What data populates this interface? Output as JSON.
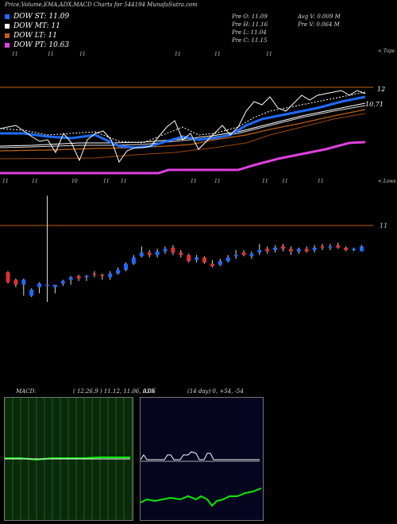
{
  "header": {
    "title": "Price,Volume,EMA,ADX,MACD Charts for 544194  MunafaSutra.com"
  },
  "legend": [
    {
      "label": "DOW ST: 11.09",
      "color": "#1e6bff"
    },
    {
      "label": "DOW MT: 11",
      "color": "#ffffff"
    },
    {
      "label": "DOW LT: 11",
      "color": "#c06010"
    },
    {
      "label": "DOW PT: 10.63",
      "color": "#e040e0"
    }
  ],
  "ohlc": {
    "open": "Pre   O: 11.09",
    "high": "Pre   H: 11.16",
    "low": "Pre   L: 11.04",
    "close": "Pre   C: 11.15",
    "avg_volume": "Avg V: 0.009  M",
    "prev_volume": "Pre   V: 0.064  M"
  },
  "labels": {
    "top": "< Tops",
    "lows": "< Lows",
    "price_12": "12",
    "price_1071": "10.71",
    "price_11": "11",
    "macd": "MACD:",
    "macd_params": "( 12,26,9 ) 11.12, 11.06, 0.06",
    "adx": "ADX",
    "adx_params": "(14  day) 0,  +54,  -54"
  },
  "top_ticks": [
    "11",
    "11",
    "11",
    "11",
    "11",
    "11"
  ],
  "low_ticks": [
    "11",
    "11",
    "10",
    "11",
    "11",
    "11",
    "11",
    "11",
    "11",
    "11"
  ],
  "chart_data": {
    "type": "candlestick",
    "title": "Price,Volume,EMA,ADX,MACD Charts for 544194  MunafaSutra.com",
    "y_ticks": [
      "12",
      "10.71",
      "11"
    ],
    "candles_note": "approximate, read from pixel positions",
    "candles": [
      {
        "o": 10.72,
        "c": 10.64,
        "h": 10.73,
        "l": 10.63,
        "up": false
      },
      {
        "o": 10.66,
        "c": 10.62,
        "h": 10.67,
        "l": 10.6,
        "up": false
      },
      {
        "o": 10.62,
        "c": 10.66,
        "h": 10.67,
        "l": 10.53,
        "up": true
      },
      {
        "o": 10.53,
        "c": 10.58,
        "h": 10.59,
        "l": 10.52,
        "up": true
      },
      {
        "o": 10.6,
        "c": 10.63,
        "h": 10.64,
        "l": 10.55,
        "up": true
      },
      {
        "o": 10.62,
        "c": 10.62,
        "h": 11.34,
        "l": 10.48,
        "up": true
      },
      {
        "o": 10.6,
        "c": 10.62,
        "h": 10.62,
        "l": 10.55,
        "up": true
      },
      {
        "o": 10.63,
        "c": 10.65,
        "h": 10.66,
        "l": 10.61,
        "up": true
      },
      {
        "o": 10.66,
        "c": 10.68,
        "h": 10.69,
        "l": 10.62,
        "up": true
      },
      {
        "o": 10.69,
        "c": 10.67,
        "h": 10.7,
        "l": 10.65,
        "up": false
      },
      {
        "o": 10.68,
        "c": 10.69,
        "h": 10.7,
        "l": 10.65,
        "up": true
      },
      {
        "o": 10.71,
        "c": 10.7,
        "h": 10.73,
        "l": 10.68,
        "up": false
      },
      {
        "o": 10.7,
        "c": 10.69,
        "h": 10.71,
        "l": 10.66,
        "up": false
      },
      {
        "o": 10.68,
        "c": 10.71,
        "h": 10.73,
        "l": 10.66,
        "up": true
      },
      {
        "o": 10.71,
        "c": 10.74,
        "h": 10.76,
        "l": 10.7,
        "up": true
      },
      {
        "o": 10.74,
        "c": 10.79,
        "h": 10.8,
        "l": 10.73,
        "up": true
      },
      {
        "o": 10.79,
        "c": 10.84,
        "h": 10.86,
        "l": 10.78,
        "up": true
      },
      {
        "o": 10.85,
        "c": 10.88,
        "h": 10.93,
        "l": 10.84,
        "up": true
      },
      {
        "o": 10.88,
        "c": 10.86,
        "h": 10.9,
        "l": 10.84,
        "up": false
      },
      {
        "o": 10.86,
        "c": 10.89,
        "h": 10.91,
        "l": 10.84,
        "up": true
      },
      {
        "o": 10.89,
        "c": 10.91,
        "h": 10.93,
        "l": 10.87,
        "up": true
      },
      {
        "o": 10.92,
        "c": 10.88,
        "h": 10.94,
        "l": 10.86,
        "up": false
      },
      {
        "o": 10.88,
        "c": 10.86,
        "h": 10.9,
        "l": 10.84,
        "up": false
      },
      {
        "o": 10.86,
        "c": 10.81,
        "h": 10.87,
        "l": 10.8,
        "up": false
      },
      {
        "o": 10.82,
        "c": 10.84,
        "h": 10.86,
        "l": 10.8,
        "up": true
      },
      {
        "o": 10.84,
        "c": 10.8,
        "h": 10.85,
        "l": 10.79,
        "up": false
      },
      {
        "o": 10.79,
        "c": 10.77,
        "h": 10.82,
        "l": 10.76,
        "up": false
      },
      {
        "o": 10.78,
        "c": 10.81,
        "h": 10.83,
        "l": 10.77,
        "up": true
      },
      {
        "o": 10.81,
        "c": 10.84,
        "h": 10.86,
        "l": 10.8,
        "up": true
      },
      {
        "o": 10.85,
        "c": 10.86,
        "h": 10.9,
        "l": 10.83,
        "up": true
      },
      {
        "o": 10.88,
        "c": 10.86,
        "h": 10.9,
        "l": 10.85,
        "up": false
      },
      {
        "o": 10.85,
        "c": 10.87,
        "h": 10.89,
        "l": 10.83,
        "up": true
      },
      {
        "o": 10.88,
        "c": 10.9,
        "h": 10.95,
        "l": 10.86,
        "up": true
      },
      {
        "o": 10.91,
        "c": 10.89,
        "h": 10.93,
        "l": 10.87,
        "up": false
      },
      {
        "o": 10.9,
        "c": 10.92,
        "h": 10.94,
        "l": 10.88,
        "up": true
      },
      {
        "o": 10.93,
        "c": 10.91,
        "h": 10.95,
        "l": 10.89,
        "up": false
      },
      {
        "o": 10.91,
        "c": 10.89,
        "h": 10.93,
        "l": 10.86,
        "up": false
      },
      {
        "o": 10.89,
        "c": 10.91,
        "h": 10.92,
        "l": 10.87,
        "up": true
      },
      {
        "o": 10.91,
        "c": 10.89,
        "h": 10.93,
        "l": 10.88,
        "up": false
      },
      {
        "o": 10.9,
        "c": 10.92,
        "h": 10.94,
        "l": 10.88,
        "up": true
      },
      {
        "o": 10.93,
        "c": 10.92,
        "h": 10.95,
        "l": 10.9,
        "up": false
      },
      {
        "o": 10.92,
        "c": 10.93,
        "h": 10.95,
        "l": 10.9,
        "up": true
      },
      {
        "o": 10.94,
        "c": 10.92,
        "h": 10.96,
        "l": 10.91,
        "up": false
      },
      {
        "o": 10.92,
        "c": 10.9,
        "h": 10.93,
        "l": 10.89,
        "up": false
      },
      {
        "o": 10.9,
        "c": 10.91,
        "h": 10.92,
        "l": 10.89,
        "up": true
      },
      {
        "o": 10.89,
        "c": 10.93,
        "h": 10.94,
        "l": 10.89,
        "up": true
      }
    ],
    "series": [
      {
        "name": "DOW ST",
        "color": "#1e6bff"
      },
      {
        "name": "DOW MT",
        "color": "#ffffff"
      },
      {
        "name": "DOW LT",
        "color": "#c06010"
      },
      {
        "name": "DOW PT",
        "color": "#e040e0"
      }
    ],
    "macd": {
      "macd": 11.12,
      "signal": 11.06,
      "histogram": 0.06
    },
    "adx": {
      "adx": 0,
      "plus_di": 54,
      "minus_di": 54
    }
  },
  "colors": {
    "up": "#1e6bff",
    "down": "#e03030",
    "orange": "#c06010",
    "magenta": "#e040e0",
    "green": "#00ee00"
  }
}
